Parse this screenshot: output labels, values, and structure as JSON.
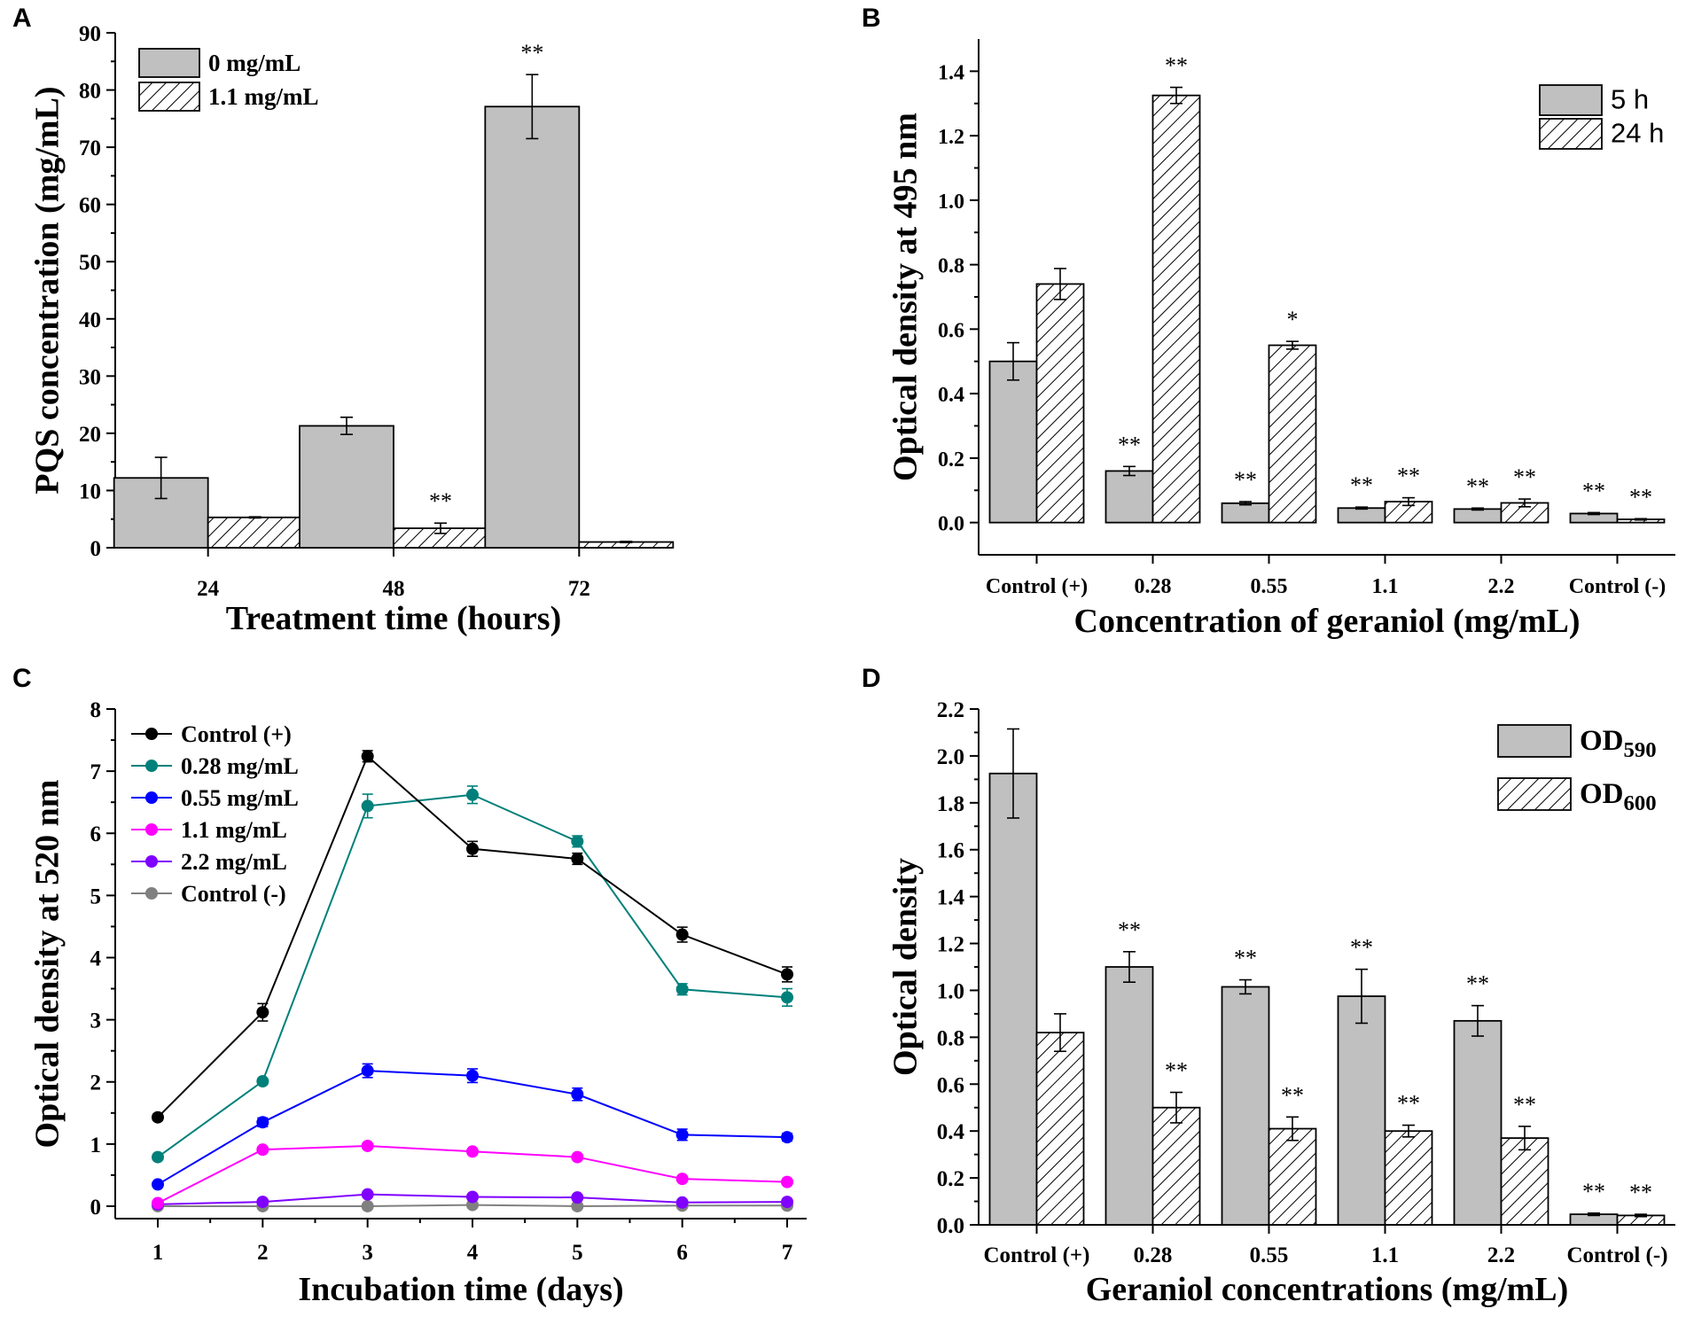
{
  "chart_data": [
    {
      "id": "A",
      "panel_label": "A",
      "type": "bar",
      "xlabel": "Treatment time (hours)",
      "ylabel": "PQS concentration (mg/mL)",
      "ylim": [
        0,
        90
      ],
      "yticks": [
        "0",
        "10",
        "20",
        "30",
        "40",
        "50",
        "60",
        "70",
        "80",
        "90"
      ],
      "categories": [
        "24",
        "48",
        "72"
      ],
      "series": [
        {
          "name": "0 mg/mL",
          "pattern": "solid",
          "values": [
            12.2,
            21.3,
            77.1
          ],
          "errors": [
            3.6,
            1.5,
            5.6
          ],
          "sig": [
            "",
            "",
            "**"
          ]
        },
        {
          "name": "1.1 mg/mL",
          "pattern": "hatch",
          "values": [
            5.3,
            3.4,
            1.0
          ],
          "errors": [
            0.1,
            0.9,
            0.1
          ],
          "sig": [
            "",
            "**",
            ""
          ]
        }
      ],
      "legend_position": "top-left"
    },
    {
      "id": "B",
      "panel_label": "B",
      "type": "bar",
      "xlabel": "Concentration of geraniol (mg/mL)",
      "ylabel": "Optical density at 495 nm",
      "ylim": [
        -0.1,
        1.5
      ],
      "yticks": [
        "0.0",
        "0.2",
        "0.4",
        "0.6",
        "0.8",
        "1.0",
        "1.2",
        "1.4"
      ],
      "categories": [
        "Control (+)",
        "0.28",
        "0.55",
        "1.1",
        "2.2",
        "Control (-)"
      ],
      "series": [
        {
          "name": "5 h",
          "pattern": "solid",
          "values": [
            0.5,
            0.16,
            0.06,
            0.045,
            0.042,
            0.028
          ],
          "errors": [
            0.058,
            0.014,
            0.005,
            0.003,
            0.003,
            0.003
          ],
          "sig": [
            "",
            "**",
            "**",
            "**",
            "**",
            "**"
          ]
        },
        {
          "name": "24 h",
          "pattern": "hatch",
          "values": [
            0.74,
            1.325,
            0.55,
            0.065,
            0.061,
            0.01
          ],
          "errors": [
            0.048,
            0.025,
            0.012,
            0.012,
            0.012,
            0.002
          ],
          "sig": [
            "",
            "**",
            "*",
            "**",
            "**",
            "**"
          ]
        }
      ],
      "legend_position": "top-right"
    },
    {
      "id": "C",
      "panel_label": "C",
      "type": "line",
      "xlabel": "Incubation time (days)",
      "ylabel": "Optical density at 520 nm",
      "ylim": [
        -0.2,
        8
      ],
      "yticks": [
        "0",
        "1",
        "2",
        "3",
        "4",
        "5",
        "6",
        "7",
        "8"
      ],
      "x": [
        1,
        2,
        3,
        4,
        5,
        6,
        7
      ],
      "xticks": [
        "1",
        "2",
        "3",
        "4",
        "5",
        "6",
        "7"
      ],
      "series": [
        {
          "name": "Control (+)",
          "color": "#000000",
          "values": [
            1.43,
            3.12,
            7.24,
            5.75,
            5.59,
            4.37,
            3.73
          ],
          "errors": [
            0.05,
            0.14,
            0.09,
            0.12,
            0.09,
            0.12,
            0.12
          ]
        },
        {
          "name": "0.28 mg/mL",
          "color": "#00807a",
          "values": [
            0.79,
            2.01,
            6.44,
            6.62,
            5.87,
            3.49,
            3.36
          ],
          "errors": [
            0.04,
            0.05,
            0.19,
            0.14,
            0.09,
            0.09,
            0.14
          ]
        },
        {
          "name": "0.55 mg/mL",
          "color": "#0000ff",
          "values": [
            0.35,
            1.35,
            2.18,
            2.1,
            1.8,
            1.15,
            1.11
          ],
          "errors": [
            0.03,
            0.07,
            0.11,
            0.11,
            0.1,
            0.09,
            0.06
          ]
        },
        {
          "name": "1.1 mg/mL",
          "color": "#ff00ff",
          "values": [
            0.05,
            0.91,
            0.97,
            0.88,
            0.79,
            0.44,
            0.39
          ],
          "errors": [
            0.02,
            0.04,
            0.04,
            0.04,
            0.04,
            0.03,
            0.03
          ]
        },
        {
          "name": "2.2 mg/mL",
          "color": "#8000ff",
          "values": [
            0.03,
            0.07,
            0.19,
            0.15,
            0.14,
            0.06,
            0.07
          ],
          "errors": [
            0.01,
            0.01,
            0.02,
            0.02,
            0.02,
            0.01,
            0.01
          ]
        },
        {
          "name": "Control (-)",
          "color": "#808080",
          "values": [
            0.0,
            0.0,
            0.0,
            0.02,
            0.0,
            0.01,
            0.01
          ],
          "errors": [
            0.005,
            0.005,
            0.005,
            0.005,
            0.005,
            0.005,
            0.005
          ]
        }
      ],
      "legend_position": "top-left"
    },
    {
      "id": "D",
      "panel_label": "D",
      "type": "bar",
      "xlabel": "Geraniol concentrations (mg/mL)",
      "ylabel": "Optical density",
      "ylim": [
        0,
        2.2
      ],
      "yticks": [
        "0.0",
        "0.2",
        "0.4",
        "0.6",
        "0.8",
        "1.0",
        "1.2",
        "1.4",
        "1.6",
        "1.8",
        "2.0",
        "2.2"
      ],
      "categories": [
        "Control (+)",
        "0.28",
        "0.55",
        "1.1",
        "2.2",
        "Control (-)"
      ],
      "series": [
        {
          "name": "OD",
          "name_sub": "590",
          "pattern": "solid",
          "values": [
            1.925,
            1.1,
            1.015,
            0.975,
            0.87,
            0.045
          ],
          "errors": [
            0.19,
            0.065,
            0.03,
            0.115,
            0.065,
            0.005
          ],
          "sig": [
            "",
            "**",
            "**",
            "**",
            "**",
            "**"
          ]
        },
        {
          "name": "OD",
          "name_sub": "600",
          "pattern": "hatch",
          "values": [
            0.82,
            0.5,
            0.41,
            0.4,
            0.37,
            0.04
          ],
          "errors": [
            0.08,
            0.065,
            0.05,
            0.025,
            0.05,
            0.005
          ],
          "sig": [
            "",
            "**",
            "**",
            "**",
            "**",
            "**"
          ]
        }
      ],
      "legend_position": "top-right"
    }
  ]
}
